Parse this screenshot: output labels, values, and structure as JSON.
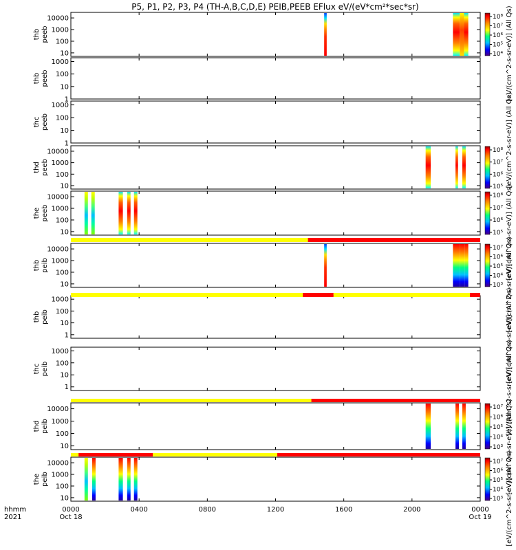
{
  "chart_data": {
    "type": "heatmap",
    "title": "P5, P1, P2, P3, P4 (TH-A,B,C,D,E) PEIB,PEEB EFlux eV/(eV*cm²*sec*sr)",
    "x_axis": {
      "range_hours": [
        0,
        24
      ],
      "tick_hours": [
        0,
        4,
        8,
        12,
        16,
        20,
        24
      ],
      "tick_labels": [
        "0000",
        "0400",
        "0800",
        "1200",
        "1600",
        "2000",
        "0000"
      ],
      "date_labels": [
        "Oct 18",
        "",
        "",
        "",
        "",
        "",
        "Oct 19"
      ],
      "left_labels": [
        "hhmm",
        "2021"
      ]
    },
    "panels": [
      {
        "probe": "thb",
        "product": "peeb",
        "ylabel": [
          "thb",
          "peeb"
        ],
        "ylim": [
          5,
          30000
        ],
        "yticks": [
          "10",
          "100",
          "1000",
          "10000"
        ],
        "has_data": true,
        "colorbar_label": "[eV/(cm^2-s-sr-eV)] (All Qs)",
        "colorbar_ticks": [
          "10⁴",
          "10⁵",
          "10⁶",
          "10⁷",
          "10⁸"
        ],
        "blocks": [
          {
            "t0": 14.85,
            "t1": 15.0,
            "profile": "peak"
          },
          {
            "t0": 22.4,
            "t1": 22.8,
            "profile": "hot"
          },
          {
            "t0": 22.8,
            "t1": 23.05,
            "profile": "warm"
          },
          {
            "t0": 23.05,
            "t1": 23.3,
            "profile": "hot"
          }
        ]
      },
      {
        "probe": "thb",
        "product": "peeb",
        "ylabel": [
          "thb",
          "peeb"
        ],
        "ylim": [
          1,
          2000
        ],
        "yticks": [
          "1",
          "10",
          "100",
          "1000"
        ],
        "has_data": false,
        "blocks": []
      },
      {
        "probe": "thc",
        "product": "peeb",
        "ylabel": [
          "thc",
          "peeb"
        ],
        "ylim": [
          1,
          2000
        ],
        "yticks": [
          "1",
          "10",
          "100",
          "1000"
        ],
        "has_data": false,
        "colorbar_label": "[eV/(cm^2-s-sr-eV)] (All Qs)",
        "blocks": []
      },
      {
        "probe": "thd",
        "product": "peeb",
        "ylabel": [
          "thd",
          "peeb"
        ],
        "ylim": [
          5,
          30000
        ],
        "yticks": [
          "10",
          "100",
          "1000",
          "10000"
        ],
        "has_data": true,
        "colorbar_ticks": [
          "10⁵",
          "10⁶",
          "10⁷",
          "10⁸"
        ],
        "blocks": [
          {
            "t0": 20.8,
            "t1": 21.1,
            "profile": "hot"
          },
          {
            "t0": 22.55,
            "t1": 22.7,
            "profile": "hot"
          },
          {
            "t0": 22.95,
            "t1": 23.15,
            "profile": "hot"
          }
        ]
      },
      {
        "probe": "the",
        "product": "peeb",
        "ylabel": [
          "the",
          "peeb"
        ],
        "ylim": [
          5,
          30000
        ],
        "yticks": [
          "10",
          "100",
          "1000",
          "10000"
        ],
        "has_data": true,
        "colorbar_label": "[eV/(cm^2-s-sr-eV)] (All Qs)",
        "colorbar_ticks": [
          "10⁵",
          "10⁶",
          "10⁷",
          "10⁸"
        ],
        "blocks": [
          {
            "t0": 0.8,
            "t1": 1.0,
            "profile": "cool"
          },
          {
            "t0": 1.2,
            "t1": 1.4,
            "profile": "cool"
          },
          {
            "t0": 2.8,
            "t1": 3.05,
            "profile": "hot"
          },
          {
            "t0": 3.3,
            "t1": 3.5,
            "profile": "hot"
          },
          {
            "t0": 3.7,
            "t1": 3.9,
            "profile": "hot"
          }
        ]
      },
      {
        "probe": "thb",
        "product": "peib",
        "ylabel": [
          "thb",
          "peib"
        ],
        "ylim": [
          5,
          30000
        ],
        "yticks": [
          "10",
          "100",
          "1000",
          "10000"
        ],
        "has_data": true,
        "colorbar_label": "[eV/(cm^2-s-sr-eV)] (All Qs)",
        "colorbar_ticks": [
          "10³",
          "10⁴",
          "10⁵",
          "10⁶",
          "10⁷"
        ],
        "blocks": [
          {
            "t0": 14.85,
            "t1": 15.0,
            "profile": "peak"
          },
          {
            "t0": 22.4,
            "t1": 22.8,
            "profile": "ion"
          },
          {
            "t0": 22.8,
            "t1": 23.1,
            "profile": "ion"
          },
          {
            "t0": 23.1,
            "t1": 23.3,
            "profile": "ion"
          }
        ]
      },
      {
        "probe": "thb",
        "product": "peib",
        "ylabel": [
          "thb",
          "peib"
        ],
        "ylim": [
          0.5,
          2000
        ],
        "yticks": [
          "1",
          "10",
          "100",
          "1000"
        ],
        "has_data": false,
        "colorbar_label": "[eV/(cm^2-s-sr-eV)] (All Qs)",
        "blocks": []
      },
      {
        "probe": "thc",
        "product": "peib",
        "ylabel": [
          "thc",
          "peib"
        ],
        "ylim": [
          0.5,
          2000
        ],
        "yticks": [
          "1",
          "10",
          "100",
          "1000"
        ],
        "has_data": false,
        "colorbar_label": "[eV/(cm^2-s-sr-eV)] (All Qs)",
        "blocks": []
      },
      {
        "probe": "thd",
        "product": "peib",
        "ylabel": [
          "thd",
          "peib"
        ],
        "ylim": [
          5,
          30000
        ],
        "yticks": [
          "10",
          "100",
          "1000",
          "10000"
        ],
        "has_data": true,
        "colorbar_label": "[eV/(cm^2-s-sr-eV)] (All Qs)",
        "colorbar_ticks": [
          "10³",
          "10⁴",
          "10⁵",
          "10⁶",
          "10⁷"
        ],
        "blocks": [
          {
            "t0": 20.8,
            "t1": 21.1,
            "profile": "ion"
          },
          {
            "t0": 22.55,
            "t1": 22.75,
            "profile": "ion"
          },
          {
            "t0": 22.95,
            "t1": 23.15,
            "profile": "ion"
          }
        ]
      },
      {
        "probe": "the",
        "product": "peib",
        "ylabel": [
          "the",
          "peib"
        ],
        "ylim": [
          5,
          30000
        ],
        "yticks": [
          "10",
          "100",
          "1000",
          "10000"
        ],
        "has_data": true,
        "colorbar_label": "[eV/(cm^2-s-sr-eV)] (All Qs)",
        "colorbar_ticks": [
          "10³",
          "10⁴",
          "10⁵",
          "10⁶",
          "10⁷"
        ],
        "blocks": [
          {
            "t0": 0.8,
            "t1": 1.0,
            "profile": "cool"
          },
          {
            "t0": 1.25,
            "t1": 1.45,
            "profile": "ion"
          },
          {
            "t0": 2.8,
            "t1": 3.05,
            "profile": "ion"
          },
          {
            "t0": 3.3,
            "t1": 3.5,
            "profile": "ion"
          },
          {
            "t0": 3.7,
            "t1": 3.9,
            "profile": "ion"
          }
        ]
      }
    ],
    "mode_bars": [
      {
        "after_panel": 4,
        "segments": [
          {
            "t0": 0,
            "t1": 13.9,
            "color": "#ffff00"
          },
          {
            "t0": 13.9,
            "t1": 24,
            "color": "#ff0000"
          }
        ]
      },
      {
        "after_panel": 5,
        "segments": [
          {
            "t0": 0,
            "t1": 13.6,
            "color": "#ffff00"
          },
          {
            "t0": 13.6,
            "t1": 15.4,
            "color": "#ff0000"
          },
          {
            "t0": 15.4,
            "t1": 23.4,
            "color": "#ffff00"
          },
          {
            "t0": 23.4,
            "t1": 24,
            "color": "#ff0000"
          }
        ]
      },
      {
        "after_panel": 7,
        "segments": [
          {
            "t0": 0,
            "t1": 14.1,
            "color": "#ffff00"
          },
          {
            "t0": 14.1,
            "t1": 24,
            "color": "#ff0000"
          }
        ]
      },
      {
        "after_panel": 8,
        "segments": [
          {
            "t0": 0,
            "t1": 0.45,
            "color": "#ffff00"
          },
          {
            "t0": 0.45,
            "t1": 4.8,
            "color": "#ff0000"
          },
          {
            "t0": 4.8,
            "t1": 12.1,
            "color": "#ffff00"
          },
          {
            "t0": 12.1,
            "t1": 24,
            "color": "#ff0000"
          }
        ]
      }
    ]
  }
}
